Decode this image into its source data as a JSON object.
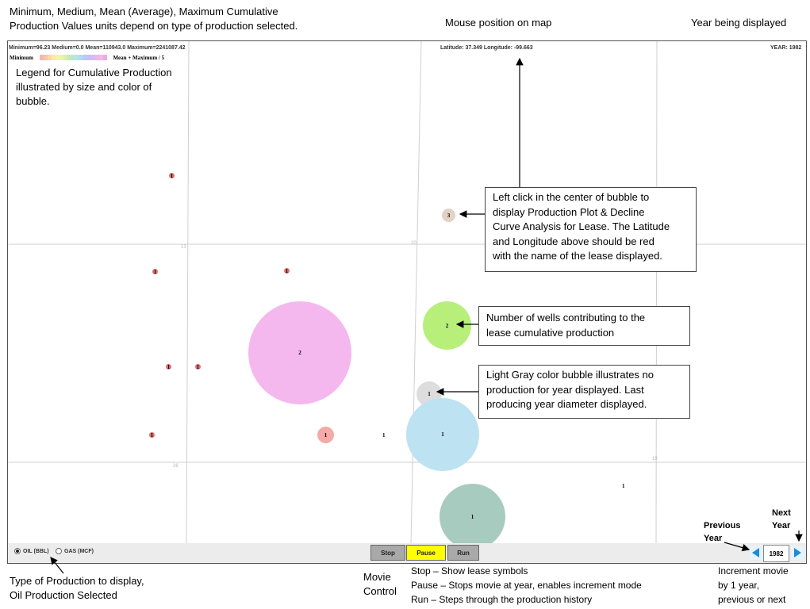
{
  "annotations": {
    "top_left_line1": "Minimum, Medium, Mean (Average), Maximum Cumulative",
    "top_left_line2": "Production Values units depend on type of production selected.",
    "mouse_position": "Mouse position on map",
    "year_displayed": "Year being displayed",
    "legend_line1": "Legend for Cumulative Production",
    "legend_line2": "illustrated by size and color of",
    "legend_line3": "bubble.",
    "bubble_click_line1": "Left click in the center of bubble to",
    "bubble_click_line2": "display Production Plot & Decline",
    "bubble_click_line3": "Curve Analysis for Lease. The Latitude",
    "bubble_click_line4": "and Longitude above should be red",
    "bubble_click_line5": "with the name of the lease displayed.",
    "wells_line1": "Number of wells contributing to the",
    "wells_line2": "lease cumulative production",
    "gray_line1": "Light Gray color bubble illustrates no",
    "gray_line2": "production for year displayed.  Last",
    "gray_line3": "producing year diameter displayed.",
    "previous_year_1": "Previous",
    "previous_year_2": "Year",
    "next_year_1": "Next",
    "next_year_2": "Year",
    "type_line1": "Type of Production to display,",
    "type_line2": "Oil Production Selected",
    "movie_line1": "Movie",
    "movie_line2": "Control",
    "stop_desc": "Stop – Show lease symbols",
    "pause_desc": "Pause – Stops movie at year, enables increment mode",
    "run_desc": "Run – Steps through the production history",
    "increment_line1": "Increment movie",
    "increment_line2": "by 1 year,",
    "increment_line3": "previous or next"
  },
  "map": {
    "stats": "Minimum=96.23 Medium=0.0 Mean=110943.0 Maximum=2241087.42",
    "coords": "Latitude: 37.349 Longitude: -99.663",
    "year": "YEAR: 1982",
    "legend_min": "Minimum",
    "legend_max": "Mean + Maximum / 5",
    "legend_colors": [
      "#f4b6b6",
      "#f7c6a6",
      "#f9d9a0",
      "#fbe9a3",
      "#f6f3a2",
      "#e9f5a6",
      "#d4f2ad",
      "#c1edb8",
      "#b6ead0",
      "#b3e4e9",
      "#b6d6f3",
      "#bac8f6",
      "#c7bff7",
      "#d8baf5",
      "#ebb7f1",
      "#f4b8ea",
      "#f1a9e6"
    ],
    "grid_labels": [
      "13",
      "20",
      "36",
      "19"
    ],
    "bubbles": [
      {
        "label": "1",
        "color": "#e07070"
      },
      {
        "label": "3",
        "color": "#e2d2c4"
      },
      {
        "label": "1",
        "color": "#e07070"
      },
      {
        "label": "1",
        "color": "#e07070"
      },
      {
        "label": "2",
        "color": "#b8ee7a"
      },
      {
        "label": "2",
        "color": "#f4b8ee"
      },
      {
        "label": "1",
        "color": "#e07070"
      },
      {
        "label": "1",
        "color": "#e07070"
      },
      {
        "label": "1",
        "color": "#dddddd"
      },
      {
        "label": "1",
        "color": "#e07070"
      },
      {
        "label": "1",
        "color": "#f4aaa6"
      },
      {
        "label": "1",
        "color": "#bde2f2"
      },
      {
        "label": "1",
        "color": "#a7cbbf"
      }
    ],
    "plain_labels": [
      "1",
      "1"
    ]
  },
  "controls": {
    "oil_label": "OIL (BBL)",
    "gas_label": "GAS (MCF)",
    "stop_label": "Stop",
    "pause_label": "Pause",
    "run_label": "Run",
    "year_value": "1982"
  }
}
